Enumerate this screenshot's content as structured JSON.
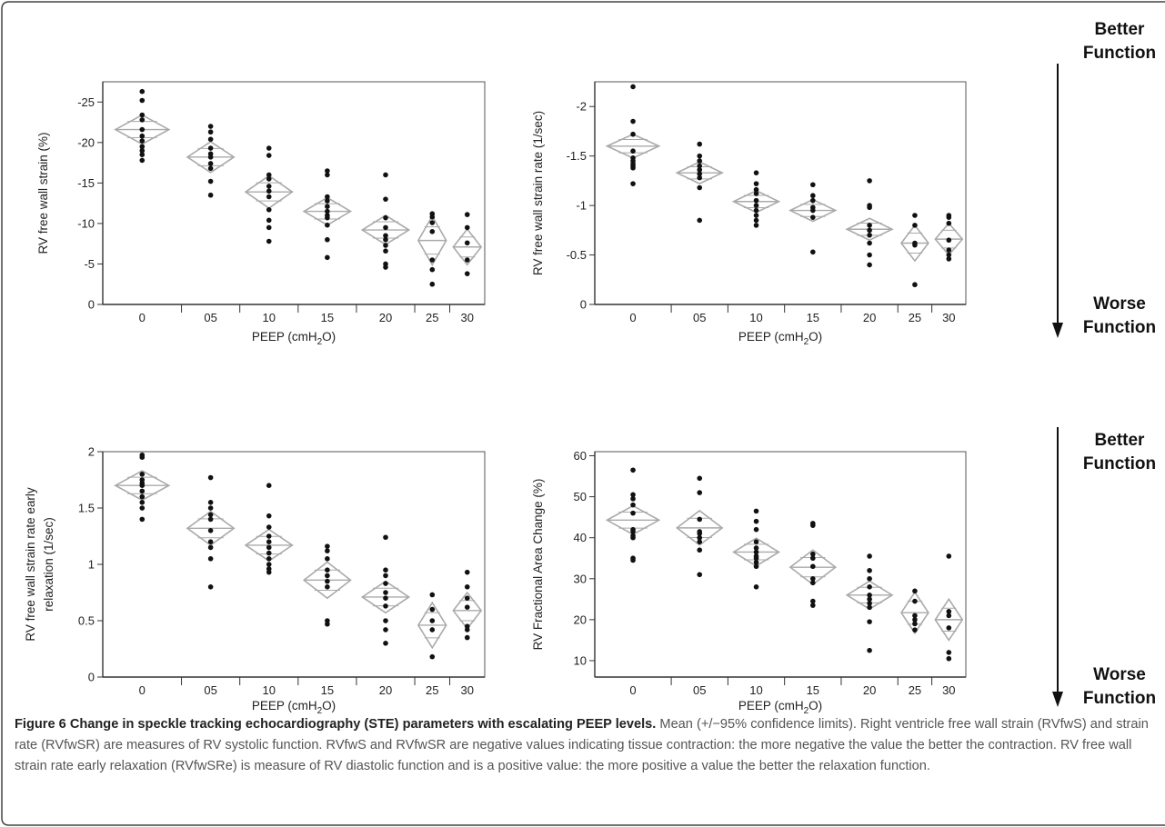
{
  "side_labels": {
    "top_better": [
      "Better",
      "Function"
    ],
    "top_worse": [
      "Worse",
      "Function"
    ],
    "bottom_better": [
      "Better",
      "Function"
    ],
    "bottom_worse": [
      "Worse",
      "Function"
    ]
  },
  "caption": {
    "title": "Figure 6 Change in speckle tracking echocardiography (STE) parameters with escalating PEEP levels.",
    "body": "Mean (+/−95% confidence limits). Right ventricle free wall strain (RVfwS) and strain rate (RVfwSR) are measures of RV systolic function. RVfwS and RVfwSR are negative values indicating tissue contraction: the more negative the value the better the contraction. RV free wall strain rate early relaxation (RVfwSRe) is measure of RV diastolic function and is a positive value: the more positive a value the better the relaxation function."
  },
  "colors": {
    "points": "#111111",
    "diamonds": "#aaaaaa",
    "axes": "#333333",
    "box": "#555555"
  },
  "chart_data": [
    {
      "type": "scatter",
      "xlabel": "PEEP (cmH2O)",
      "ylabel": "RV free wall strain (%)",
      "categories": [
        "0",
        "05",
        "10",
        "15",
        "20",
        "25",
        "30"
      ],
      "category_weights": [
        1.35,
        1.0,
        1.0,
        1.0,
        1.0,
        0.6,
        0.6
      ],
      "y_ticks": [
        0,
        -5,
        -10,
        -15,
        -20,
        -25
      ],
      "y_tick_labels": [
        "0",
        "-5",
        "-10",
        "-15",
        "-20",
        "-25"
      ],
      "ylim": [
        0,
        -27.5
      ],
      "groups": [
        {
          "mean": -21.6,
          "ci": [
            -19.8,
            -23.4
          ],
          "points": [
            -26.3,
            -25.2,
            -23.4,
            -22.8,
            -21.6,
            -20.8,
            -20.2,
            -19.5,
            -19.0,
            -18.5,
            -17.8
          ]
        },
        {
          "mean": -18.2,
          "ci": [
            -16.3,
            -20.1
          ],
          "points": [
            -22.0,
            -21.3,
            -20.4,
            -19.3,
            -18.6,
            -18.2,
            -17.4,
            -16.8,
            -15.2,
            -13.5
          ]
        },
        {
          "mean": -13.9,
          "ci": [
            -11.9,
            -15.9
          ],
          "points": [
            -19.3,
            -18.4,
            -16.0,
            -15.5,
            -14.6,
            -14.0,
            -13.3,
            -11.7,
            -10.4,
            -9.5,
            -7.8
          ]
        },
        {
          "mean": -11.5,
          "ci": [
            -9.8,
            -13.2
          ],
          "points": [
            -16.5,
            -16.0,
            -13.3,
            -12.8,
            -12.1,
            -11.5,
            -11.0,
            -10.7,
            -9.8,
            -8.0,
            -5.8
          ]
        },
        {
          "mean": -9.2,
          "ci": [
            -7.4,
            -11.0
          ],
          "points": [
            -16.0,
            -13.0,
            -10.7,
            -9.5,
            -8.5,
            -8.0,
            -7.3,
            -6.6,
            -5.0,
            -4.6
          ]
        },
        {
          "mean": -7.9,
          "ci": [
            -4.9,
            -10.9
          ],
          "points": [
            -11.2,
            -10.8,
            -10.1,
            -9.0,
            -5.5,
            -4.3,
            -2.5
          ]
        },
        {
          "mean": -7.1,
          "ci": [
            -4.9,
            -9.3
          ],
          "points": [
            -11.1,
            -9.5,
            -7.6,
            -5.5,
            -3.8
          ]
        }
      ]
    },
    {
      "type": "scatter",
      "xlabel": "PEEP (cmH2O)",
      "ylabel": "RV free wall strain rate (1/sec)",
      "categories": [
        "0",
        "05",
        "10",
        "15",
        "20",
        "25",
        "30"
      ],
      "category_weights": [
        1.35,
        1.0,
        1.0,
        1.0,
        1.0,
        0.6,
        0.6
      ],
      "y_ticks": [
        0,
        -0.5,
        -1,
        -1.5,
        -2
      ],
      "y_tick_labels": [
        "0",
        "-0.5",
        "-1",
        "-1.5",
        "-2"
      ],
      "ylim": [
        0,
        -2.25
      ],
      "groups": [
        {
          "mean": -1.6,
          "ci": [
            -1.48,
            -1.72
          ],
          "points": [
            -2.2,
            -1.85,
            -1.72,
            -1.55,
            -1.48,
            -1.45,
            -1.42,
            -1.4,
            -1.38,
            -1.22
          ]
        },
        {
          "mean": -1.33,
          "ci": [
            -1.22,
            -1.44
          ],
          "points": [
            -1.62,
            -1.5,
            -1.45,
            -1.4,
            -1.36,
            -1.32,
            -1.28,
            -1.18,
            -0.85
          ]
        },
        {
          "mean": -1.04,
          "ci": [
            -0.93,
            -1.15
          ],
          "points": [
            -1.33,
            -1.22,
            -1.16,
            -1.12,
            -1.05,
            -1.0,
            -0.95,
            -0.9,
            -0.85,
            -0.8
          ]
        },
        {
          "mean": -0.95,
          "ci": [
            -0.84,
            -1.06
          ],
          "points": [
            -1.21,
            -1.1,
            -1.05,
            -0.98,
            -0.95,
            -0.88,
            -0.53
          ]
        },
        {
          "mean": -0.76,
          "ci": [
            -0.65,
            -0.87
          ],
          "points": [
            -1.25,
            -1.0,
            -0.98,
            -0.8,
            -0.75,
            -0.7,
            -0.62,
            -0.5,
            -0.4
          ]
        },
        {
          "mean": -0.62,
          "ci": [
            -0.44,
            -0.8
          ],
          "points": [
            -0.9,
            -0.8,
            -0.62,
            -0.6,
            -0.2
          ]
        },
        {
          "mean": -0.66,
          "ci": [
            -0.5,
            -0.82
          ],
          "points": [
            -0.9,
            -0.88,
            -0.82,
            -0.65,
            -0.55,
            -0.5,
            -0.46
          ]
        }
      ]
    },
    {
      "type": "scatter",
      "xlabel": "PEEP (cmH2O)",
      "ylabel": [
        "RV free wall strain rate early",
        "relaxation  (1/sec)"
      ],
      "categories": [
        "0",
        "05",
        "10",
        "15",
        "20",
        "25",
        "30"
      ],
      "category_weights": [
        1.35,
        1.0,
        1.0,
        1.0,
        1.0,
        0.6,
        0.6
      ],
      "y_ticks": [
        0,
        0.5,
        1,
        1.5,
        2
      ],
      "y_tick_labels": [
        "0",
        "0.5",
        "1",
        "1.5",
        "2"
      ],
      "ylim": [
        0,
        2.0
      ],
      "groups": [
        {
          "mean": 1.7,
          "ci": [
            1.57,
            1.83
          ],
          "points": [
            1.97,
            1.95,
            1.8,
            1.75,
            1.72,
            1.7,
            1.65,
            1.6,
            1.55,
            1.5,
            1.4
          ]
        },
        {
          "mean": 1.32,
          "ci": [
            1.17,
            1.47
          ],
          "points": [
            1.77,
            1.55,
            1.5,
            1.44,
            1.4,
            1.3,
            1.2,
            1.15,
            1.05,
            0.8
          ]
        },
        {
          "mean": 1.17,
          "ci": [
            1.03,
            1.31
          ],
          "points": [
            1.7,
            1.43,
            1.33,
            1.25,
            1.2,
            1.15,
            1.1,
            1.05,
            1.0,
            0.96,
            0.93
          ]
        },
        {
          "mean": 0.86,
          "ci": [
            0.7,
            1.02
          ],
          "points": [
            1.16,
            1.12,
            1.05,
            0.95,
            0.9,
            0.85,
            0.8,
            0.5,
            0.47
          ]
        },
        {
          "mean": 0.71,
          "ci": [
            0.57,
            0.85
          ],
          "points": [
            1.24,
            0.95,
            0.9,
            0.83,
            0.75,
            0.7,
            0.63,
            0.5,
            0.42,
            0.3
          ]
        },
        {
          "mean": 0.46,
          "ci": [
            0.26,
            0.66
          ],
          "points": [
            0.73,
            0.6,
            0.5,
            0.42,
            0.18
          ]
        },
        {
          "mean": 0.59,
          "ci": [
            0.43,
            0.75
          ],
          "points": [
            0.93,
            0.8,
            0.7,
            0.62,
            0.45,
            0.42,
            0.35
          ]
        }
      ]
    },
    {
      "type": "scatter",
      "xlabel": "PEEP (cmH2O)",
      "ylabel": "RV Fractional Area Change (%)",
      "categories": [
        "0",
        "05",
        "10",
        "15",
        "20",
        "25",
        "30"
      ],
      "category_weights": [
        1.35,
        1.0,
        1.0,
        1.0,
        1.0,
        0.6,
        0.6
      ],
      "y_ticks": [
        10,
        20,
        30,
        40,
        50,
        60
      ],
      "y_tick_labels": [
        "10",
        "20",
        "30",
        "40",
        "50",
        "60"
      ],
      "ylim": [
        6,
        61
      ],
      "groups": [
        {
          "mean": 44.3,
          "ci": [
            40.8,
            47.8
          ],
          "points": [
            56.5,
            50.5,
            49.5,
            48.0,
            46.0,
            42.0,
            41.5,
            40.5,
            40.0,
            35.0,
            34.5
          ]
        },
        {
          "mean": 42.4,
          "ci": [
            38.2,
            46.6
          ],
          "points": [
            54.5,
            51.0,
            44.5,
            41.5,
            41.0,
            40.0,
            39.0,
            37.0,
            31.0
          ]
        },
        {
          "mean": 36.5,
          "ci": [
            33.1,
            39.9
          ],
          "points": [
            46.5,
            44.0,
            42.0,
            39.0,
            37.5,
            36.5,
            35.5,
            35.0,
            34.0,
            33.0,
            28.0
          ]
        },
        {
          "mean": 32.8,
          "ci": [
            28.6,
            37.0
          ],
          "points": [
            43.5,
            43.0,
            36.0,
            35.0,
            33.0,
            30.0,
            29.0,
            24.5,
            23.5
          ]
        },
        {
          "mean": 26.0,
          "ci": [
            22.6,
            29.4
          ],
          "points": [
            35.5,
            32.0,
            30.0,
            28.0,
            26.0,
            25.0,
            24.0,
            23.0,
            19.5,
            12.5
          ]
        },
        {
          "mean": 21.7,
          "ci": [
            16.7,
            26.7
          ],
          "points": [
            27.0,
            24.5,
            21.0,
            20.0,
            19.0,
            17.5
          ]
        },
        {
          "mean": 20.0,
          "ci": [
            15.0,
            25.0
          ],
          "points": [
            35.5,
            22.0,
            21.0,
            18.0,
            12.0,
            10.5
          ]
        }
      ]
    }
  ]
}
